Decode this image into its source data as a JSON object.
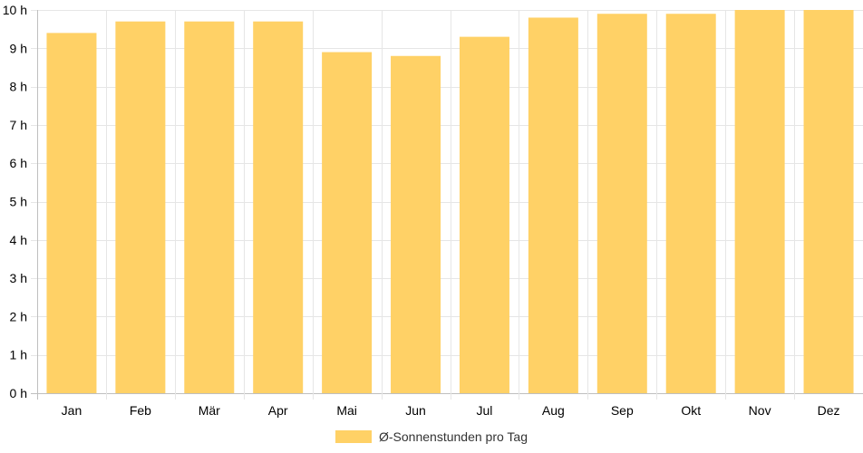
{
  "chart_data": {
    "type": "bar",
    "categories": [
      "Jan",
      "Feb",
      "Mär",
      "Apr",
      "Mai",
      "Jun",
      "Jul",
      "Aug",
      "Sep",
      "Okt",
      "Nov",
      "Dez"
    ],
    "series": [
      {
        "name": "Ø-Sonnenstunden pro Tag",
        "values": [
          9.4,
          9.7,
          9.7,
          9.7,
          8.9,
          8.8,
          9.3,
          9.8,
          9.9,
          9.9,
          10.0,
          10.0
        ]
      }
    ],
    "title": "",
    "xlabel": "",
    "ylabel": "",
    "ylim": [
      0,
      10
    ],
    "y_ticks": [
      0,
      1,
      2,
      3,
      4,
      5,
      6,
      7,
      8,
      9,
      10
    ],
    "y_tick_unit": "h",
    "grid": true,
    "legend_position": "bottom",
    "colors": {
      "bar": "#FFD166",
      "grid": "#e6e6e6",
      "axis": "#bfbfbf",
      "text": "#000000"
    }
  }
}
